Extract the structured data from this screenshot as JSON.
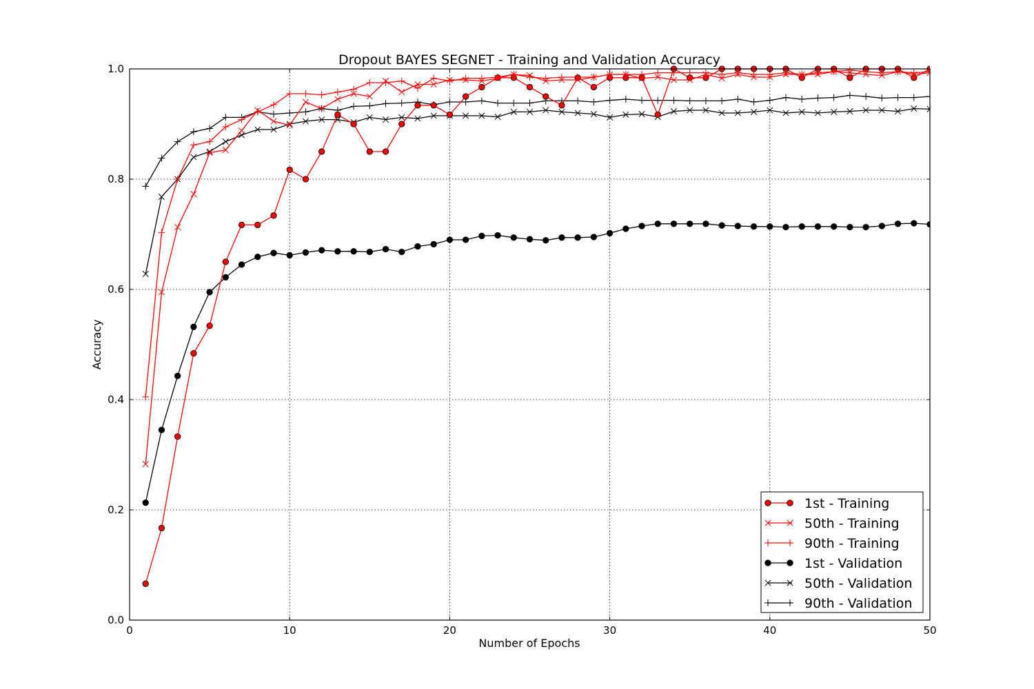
{
  "chart_data": {
    "type": "line",
    "title": "Dropout BAYES SEGNET - Training and Validation Accuracy",
    "xlabel": "Number of Epochs",
    "ylabel": "Accuracy",
    "xlim": [
      0,
      50
    ],
    "ylim": [
      0.0,
      1.0
    ],
    "xticks": [
      "0",
      "10",
      "20",
      "30",
      "40",
      "50"
    ],
    "yticks": [
      "0.0",
      "0.2",
      "0.4",
      "0.6",
      "0.8",
      "1.0"
    ],
    "grid": true,
    "legend_position": "lower-right",
    "x": [
      1,
      2,
      3,
      4,
      5,
      6,
      7,
      8,
      9,
      10,
      11,
      12,
      13,
      14,
      15,
      16,
      17,
      18,
      19,
      20,
      21,
      22,
      23,
      24,
      25,
      26,
      27,
      28,
      29,
      30,
      31,
      32,
      33,
      34,
      35,
      36,
      37,
      38,
      39,
      40,
      41,
      42,
      43,
      44,
      45,
      46,
      47,
      48,
      49,
      50
    ],
    "series": [
      {
        "name": "1st - Training",
        "color": "#ff0000",
        "marker": "circle",
        "values": [
          0.066,
          0.167,
          0.333,
          0.484,
          0.534,
          0.65,
          0.717,
          0.717,
          0.734,
          0.817,
          0.8,
          0.85,
          0.917,
          0.9,
          0.85,
          0.85,
          0.9,
          0.934,
          0.934,
          0.917,
          0.95,
          0.967,
          0.984,
          0.984,
          0.967,
          0.95,
          0.934,
          0.984,
          0.967,
          0.984,
          0.984,
          0.984,
          0.917,
          1.0,
          0.984,
          0.984,
          1.0,
          1.0,
          1.0,
          1.0,
          1.0,
          0.984,
          1.0,
          1.0,
          0.984,
          1.0,
          1.0,
          1.0,
          0.984,
          1.0
        ]
      },
      {
        "name": "50th - Training",
        "color": "#ff0000",
        "marker": "x",
        "values": [
          0.283,
          0.595,
          0.713,
          0.773,
          0.848,
          0.853,
          0.888,
          0.925,
          0.905,
          0.898,
          0.94,
          0.928,
          0.945,
          0.955,
          0.95,
          0.978,
          0.958,
          0.972,
          0.972,
          0.98,
          0.98,
          0.978,
          0.983,
          0.99,
          0.988,
          0.978,
          0.98,
          0.98,
          0.985,
          0.99,
          0.99,
          0.983,
          0.985,
          0.98,
          0.98,
          0.99,
          0.983,
          0.99,
          0.985,
          0.985,
          0.99,
          0.99,
          0.99,
          0.995,
          0.993,
          0.99,
          0.988,
          0.995,
          0.99,
          0.993
        ]
      },
      {
        "name": "90th - Training",
        "color": "#ff0000",
        "marker": "plus",
        "values": [
          0.405,
          0.703,
          0.8,
          0.862,
          0.868,
          0.895,
          0.908,
          0.922,
          0.935,
          0.955,
          0.955,
          0.953,
          0.958,
          0.963,
          0.975,
          0.975,
          0.978,
          0.965,
          0.983,
          0.978,
          0.983,
          0.983,
          0.985,
          0.99,
          0.985,
          0.983,
          0.985,
          0.985,
          0.985,
          0.99,
          0.99,
          0.99,
          0.993,
          0.993,
          0.993,
          0.993,
          0.99,
          0.993,
          0.99,
          0.99,
          0.993,
          0.99,
          0.993,
          0.995,
          0.998,
          0.995,
          0.993,
          0.995,
          0.993,
          0.995
        ]
      },
      {
        "name": "1st - Validation",
        "color": "#000000",
        "marker": "circle",
        "values": [
          0.213,
          0.345,
          0.443,
          0.532,
          0.595,
          0.622,
          0.645,
          0.659,
          0.666,
          0.662,
          0.667,
          0.671,
          0.669,
          0.669,
          0.668,
          0.673,
          0.668,
          0.678,
          0.682,
          0.69,
          0.69,
          0.697,
          0.698,
          0.694,
          0.691,
          0.689,
          0.694,
          0.694,
          0.695,
          0.702,
          0.71,
          0.715,
          0.719,
          0.719,
          0.719,
          0.719,
          0.716,
          0.715,
          0.714,
          0.714,
          0.713,
          0.714,
          0.714,
          0.714,
          0.713,
          0.713,
          0.715,
          0.719,
          0.72,
          0.718
        ]
      },
      {
        "name": "50th - Validation",
        "color": "#000000",
        "marker": "x",
        "values": [
          0.628,
          0.768,
          0.8,
          0.84,
          0.85,
          0.868,
          0.88,
          0.89,
          0.89,
          0.9,
          0.905,
          0.908,
          0.908,
          0.903,
          0.912,
          0.908,
          0.912,
          0.91,
          0.915,
          0.915,
          0.915,
          0.915,
          0.913,
          0.922,
          0.922,
          0.925,
          0.922,
          0.92,
          0.918,
          0.912,
          0.917,
          0.918,
          0.913,
          0.923,
          0.925,
          0.925,
          0.92,
          0.92,
          0.922,
          0.925,
          0.92,
          0.922,
          0.92,
          0.922,
          0.923,
          0.925,
          0.925,
          0.923,
          0.928,
          0.927
        ]
      },
      {
        "name": "90th - Validation",
        "color": "#000000",
        "marker": "plus",
        "values": [
          0.787,
          0.838,
          0.868,
          0.886,
          0.892,
          0.912,
          0.912,
          0.922,
          0.918,
          0.92,
          0.922,
          0.928,
          0.925,
          0.932,
          0.933,
          0.937,
          0.938,
          0.94,
          0.935,
          0.94,
          0.94,
          0.942,
          0.938,
          0.938,
          0.938,
          0.942,
          0.942,
          0.942,
          0.94,
          0.943,
          0.945,
          0.943,
          0.943,
          0.943,
          0.942,
          0.942,
          0.942,
          0.945,
          0.94,
          0.943,
          0.948,
          0.945,
          0.947,
          0.948,
          0.952,
          0.95,
          0.947,
          0.948,
          0.948,
          0.95
        ]
      }
    ]
  }
}
